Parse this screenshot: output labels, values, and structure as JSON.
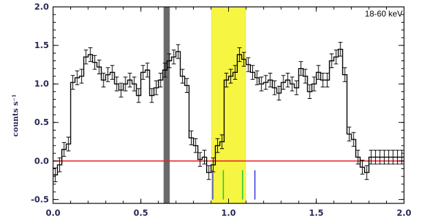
{
  "chart_data": {
    "type": "line",
    "xlim": [
      0.0,
      2.0
    ],
    "ylim": [
      -0.55,
      2.0
    ],
    "xticks": [
      0.0,
      0.5,
      1.0,
      1.5,
      2.0
    ],
    "xtick_labels": [
      "0.0",
      "0.5",
      "1.0",
      "1.5",
      "2.0"
    ],
    "yticks": [
      -0.5,
      0.0,
      0.5,
      1.0,
      1.5,
      2.0
    ],
    "ytick_labels": [
      "-0.5",
      "0.0",
      "0.5",
      "1.0",
      "1.5",
      "2.0"
    ],
    "ylabel": "counts s⁻¹",
    "annotation": "18-60 keV",
    "series": [
      {
        "style": "step-with-errorbars",
        "color": "#000000",
        "x": [
          0.0,
          0.025,
          0.05,
          0.075,
          0.1,
          0.125,
          0.15,
          0.175,
          0.2,
          0.225,
          0.25,
          0.275,
          0.3,
          0.325,
          0.35,
          0.375,
          0.4,
          0.425,
          0.45,
          0.475,
          0.5,
          0.525,
          0.55,
          0.575,
          0.6,
          0.625,
          0.65,
          0.675,
          0.7,
          0.725,
          0.75,
          0.775,
          0.8,
          0.825,
          0.85,
          0.875,
          0.9,
          0.925,
          0.95,
          0.975,
          1.0,
          1.025,
          1.05,
          1.075,
          1.1,
          1.125,
          1.15,
          1.175,
          1.2,
          1.225,
          1.25,
          1.275,
          1.3,
          1.325,
          1.35,
          1.375,
          1.4,
          1.425,
          1.45,
          1.475,
          1.5,
          1.525,
          1.55,
          1.575,
          1.6,
          1.625,
          1.65,
          1.675,
          1.7,
          1.725,
          1.75,
          1.775,
          1.8,
          1.825,
          1.85,
          1.875,
          1.9,
          1.925,
          1.95,
          1.975
        ],
        "y": [
          -0.18,
          -0.05,
          0.15,
          0.22,
          1.02,
          1.08,
          1.1,
          1.35,
          1.38,
          1.28,
          1.22,
          1.05,
          1.12,
          1.15,
          1.0,
          0.92,
          1.0,
          1.05,
          1.0,
          0.85,
          1.15,
          1.18,
          0.85,
          0.95,
          1.05,
          1.18,
          1.3,
          1.35,
          1.42,
          1.1,
          0.98,
          0.3,
          0.2,
          0.02,
          0.05,
          -0.15,
          -0.05,
          0.2,
          0.25,
          1.05,
          1.1,
          1.15,
          1.38,
          1.32,
          1.25,
          1.15,
          1.08,
          1.0,
          1.02,
          1.05,
          0.95,
          0.88,
          1.02,
          1.05,
          1.0,
          0.95,
          1.2,
          1.1,
          0.9,
          1.0,
          1.15,
          1.05,
          1.05,
          1.3,
          1.35,
          1.45,
          1.12,
          0.35,
          0.28,
          0.05,
          -0.08,
          -0.15,
          0.05,
          0.05,
          0.05,
          0.05,
          0.05,
          0.05,
          0.05,
          0.05
        ],
        "yerr": 0.09
      }
    ],
    "horizontal_line": {
      "y": 0.0,
      "color": "#e8202a"
    },
    "highlight_band": {
      "x0": 0.9,
      "x1": 1.1,
      "color": "#f5f542"
    },
    "gray_band": {
      "x0": 0.63,
      "x1": 0.665,
      "color": "#6a6a6a"
    },
    "marker_lines": [
      {
        "x": 0.91,
        "color": "#3b3bd6"
      },
      {
        "x": 0.97,
        "color": "#22cc33"
      },
      {
        "x": 1.08,
        "color": "#22cc33"
      },
      {
        "x": 1.15,
        "color": "#3b3bd6"
      }
    ]
  }
}
